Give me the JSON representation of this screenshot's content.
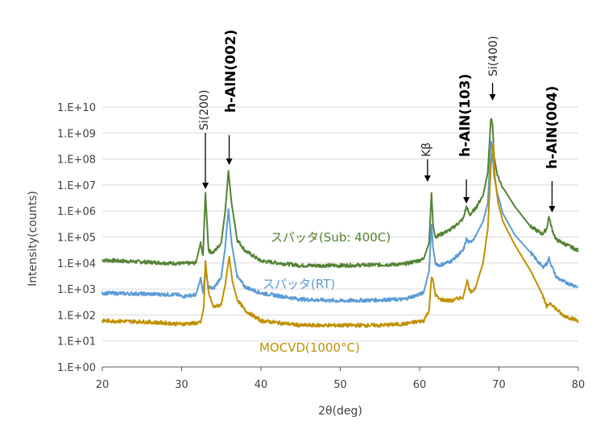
{
  "chart_data": {
    "type": "line",
    "xlabel": "2θ(deg)",
    "ylabel": "Intensity(counts)",
    "xlim": [
      20,
      80
    ],
    "ylim": [
      1,
      10000000000
    ],
    "y_scale": "log",
    "grid": "horizontal",
    "x_ticks": [
      "20",
      "30",
      "40",
      "50",
      "60",
      "70",
      "80"
    ],
    "y_ticks": [
      "1.E+00",
      "1.E+01",
      "1.E+02",
      "1.E+03",
      "1.E+04",
      "1.E+05",
      "1.E+06",
      "1.E+07",
      "1.E+08",
      "1.E+09",
      "1.E+10"
    ],
    "series": [
      {
        "name": "スパッタ(Sub: 400C)",
        "color": "#548235",
        "x": [
          20,
          25,
          30,
          31.8,
          32.4,
          32.7,
          33.0,
          33.4,
          34.0,
          35.0,
          35.5,
          35.9,
          36.3,
          37.0,
          38,
          40,
          45,
          50,
          55,
          58,
          60.5,
          61.2,
          61.5,
          61.7,
          62.0,
          62.5,
          64,
          65.5,
          65.9,
          66.3,
          67,
          68,
          68.6,
          69.0,
          69.2,
          69.4,
          69.8,
          70.5,
          72,
          74,
          75.5,
          76.0,
          76.3,
          76.7,
          77.2,
          78,
          80
        ],
        "y": [
          13000,
          11000,
          9500,
          10000,
          60000,
          20000,
          5000000,
          30000,
          25000,
          60000,
          1000000,
          35000000,
          2000000,
          80000,
          30000,
          12000,
          8000,
          8000,
          8500,
          9000,
          14000,
          60000,
          5000000,
          300000,
          100000,
          120000,
          200000,
          500000,
          1500000,
          700000,
          1200000,
          4000000,
          30000000,
          4000000000,
          2000000000,
          120000000,
          25000000,
          8000000,
          1500000,
          250000,
          130000,
          200000,
          600000,
          200000,
          80000,
          60000,
          30000
        ]
      },
      {
        "name": "スパッタ(RT)",
        "color": "#5B9BD5",
        "x": [
          20,
          25,
          29.5,
          30,
          31.8,
          32.4,
          32.7,
          33.0,
          33.4,
          34.0,
          35.0,
          35.5,
          35.9,
          36.3,
          37.0,
          38,
          40,
          45,
          50,
          55,
          58,
          60.5,
          61.2,
          61.5,
          61.7,
          62.0,
          62.5,
          64,
          65.5,
          65.9,
          66.3,
          67,
          68,
          68.6,
          69.0,
          69.2,
          69.4,
          69.8,
          70.5,
          72,
          74,
          75.5,
          76.0,
          76.3,
          76.7,
          77.2,
          78,
          80
        ],
        "y": [
          700,
          650,
          600,
          520,
          600,
          2500,
          700,
          5000,
          1200,
          1000,
          3000,
          40000,
          1200000,
          60000,
          3000,
          1200,
          700,
          400,
          350,
          380,
          400,
          700,
          5000,
          300000,
          40000,
          10000,
          8000,
          12000,
          30000,
          80000,
          60000,
          100000,
          400000,
          2000000,
          500000000,
          200000000,
          20000000,
          5000000,
          800000,
          120000,
          25000,
          7000,
          9000,
          15000,
          7000,
          3000,
          2000,
          1200
        ]
      },
      {
        "name": "MOCVD(1000°C)",
        "color": "#BF9000",
        "x": [
          20,
          25,
          30,
          32.4,
          32.8,
          33.0,
          33.4,
          34.0,
          35.0,
          35.5,
          36.0,
          36.4,
          37.0,
          38,
          40,
          45,
          50,
          55,
          58,
          60.5,
          61.2,
          61.5,
          61.7,
          62.0,
          62.5,
          64,
          65.5,
          66.0,
          66.4,
          67,
          68,
          68.6,
          69.0,
          69.3,
          69.5,
          69.9,
          70.5,
          72,
          74,
          75.5,
          76.0,
          76.5,
          77.0,
          78,
          80
        ],
        "y": [
          60,
          55,
          45,
          50,
          200,
          12000,
          700,
          200,
          250,
          1500,
          18000,
          2000,
          400,
          150,
          60,
          40,
          40,
          40,
          45,
          60,
          150,
          3000,
          2000,
          600,
          400,
          350,
          500,
          2000,
          800,
          1000,
          10000,
          200000,
          60000000,
          400000000,
          20000000,
          2000000,
          400000,
          50000,
          5000,
          600,
          200,
          300,
          200,
          100,
          60
        ]
      }
    ],
    "series_labels": [
      "スパッタ(Sub: 400C)",
      "スパッタ(RT)",
      "MOCVD(1000°C)"
    ],
    "annotations": [
      {
        "text": "Si(200)",
        "x": 33.0,
        "style": "normal"
      },
      {
        "text": "h-AlN(002)",
        "x": 36.0,
        "style": "bold"
      },
      {
        "text": "Kβ",
        "x": 61.0,
        "style": "normal"
      },
      {
        "text": "h-AlN(103)",
        "x": 65.9,
        "style": "bold"
      },
      {
        "text": "Si(400)",
        "x": 69.2,
        "style": "normal"
      },
      {
        "text": "h-AlN(004)",
        "x": 76.7,
        "style": "bold"
      }
    ],
    "gridline_color": "#d9d9d9",
    "axis_color": "#595959"
  }
}
